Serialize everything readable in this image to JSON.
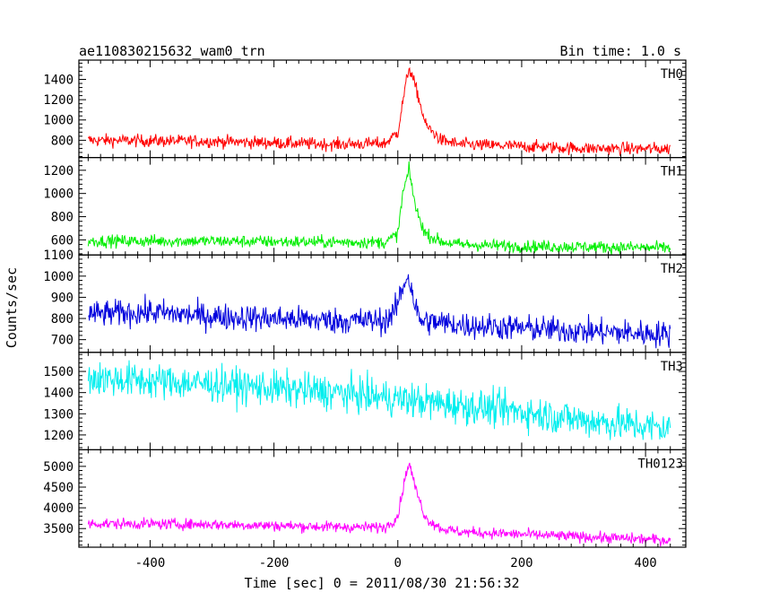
{
  "chart_data": {
    "type": "line",
    "title": "ae110830215632_wam0_trn",
    "subtitle": "Bin time: 1.0 s",
    "xlabel": "Time [sec] 0 = 2011/08/30 21:56:32",
    "ylabel": "Counts/sec",
    "xlim": [
      -515,
      465
    ],
    "xticks": [
      -400,
      -200,
      0,
      200,
      400
    ],
    "grid": false,
    "panels": [
      {
        "name": "TH0",
        "color": "#ff0000",
        "ylim": [
          630,
          1590
        ],
        "yticks": [
          800,
          1000,
          1200,
          1400
        ],
        "series": [
          {
            "x": -500,
            "y": 800
          },
          {
            "x": -300,
            "y": 790
          },
          {
            "x": -100,
            "y": 760
          },
          {
            "x": -20,
            "y": 770
          },
          {
            "x": 0,
            "y": 880
          },
          {
            "x": 10,
            "y": 1250
          },
          {
            "x": 18,
            "y": 1520
          },
          {
            "x": 30,
            "y": 1300
          },
          {
            "x": 45,
            "y": 950
          },
          {
            "x": 70,
            "y": 800
          },
          {
            "x": 100,
            "y": 760
          },
          {
            "x": 200,
            "y": 740
          },
          {
            "x": 300,
            "y": 720
          },
          {
            "x": 440,
            "y": 715
          }
        ]
      },
      {
        "name": "TH1",
        "color": "#00ee00",
        "ylim": [
          470,
          1310
        ],
        "yticks": [
          600,
          800,
          1000,
          1200
        ],
        "series": [
          {
            "x": -500,
            "y": 590
          },
          {
            "x": -300,
            "y": 590
          },
          {
            "x": -100,
            "y": 580
          },
          {
            "x": -20,
            "y": 580
          },
          {
            "x": 0,
            "y": 650
          },
          {
            "x": 8,
            "y": 1000
          },
          {
            "x": 18,
            "y": 1200
          },
          {
            "x": 30,
            "y": 850
          },
          {
            "x": 45,
            "y": 650
          },
          {
            "x": 70,
            "y": 585
          },
          {
            "x": 100,
            "y": 560
          },
          {
            "x": 200,
            "y": 545
          },
          {
            "x": 300,
            "y": 540
          },
          {
            "x": 440,
            "y": 530
          }
        ]
      },
      {
        "name": "TH2",
        "color": "#0000dd",
        "ylim": [
          640,
          1100
        ],
        "yticks": [
          700,
          800,
          900,
          1000,
          1100
        ],
        "series": [
          {
            "x": -500,
            "y": 820
          },
          {
            "x": -400,
            "y": 830
          },
          {
            "x": -300,
            "y": 810
          },
          {
            "x": -100,
            "y": 790
          },
          {
            "x": -20,
            "y": 790
          },
          {
            "x": -5,
            "y": 830
          },
          {
            "x": 5,
            "y": 920
          },
          {
            "x": 16,
            "y": 1010
          },
          {
            "x": 25,
            "y": 900
          },
          {
            "x": 35,
            "y": 790
          },
          {
            "x": 100,
            "y": 770
          },
          {
            "x": 200,
            "y": 755
          },
          {
            "x": 300,
            "y": 740
          },
          {
            "x": 440,
            "y": 725
          }
        ]
      },
      {
        "name": "TH3",
        "color": "#00eeee",
        "ylim": [
          1130,
          1590
        ],
        "yticks": [
          1200,
          1300,
          1400,
          1500
        ],
        "series": [
          {
            "x": -500,
            "y": 1470
          },
          {
            "x": -300,
            "y": 1440
          },
          {
            "x": -100,
            "y": 1400
          },
          {
            "x": 0,
            "y": 1370
          },
          {
            "x": 100,
            "y": 1340
          },
          {
            "x": 200,
            "y": 1310
          },
          {
            "x": 300,
            "y": 1270
          },
          {
            "x": 440,
            "y": 1230
          }
        ]
      },
      {
        "name": "TH0123",
        "color": "#ff00ff",
        "ylim": [
          3050,
          5400
        ],
        "yticks": [
          3500,
          4000,
          4500,
          5000
        ],
        "series": [
          {
            "x": -500,
            "y": 3620
          },
          {
            "x": -300,
            "y": 3600
          },
          {
            "x": -100,
            "y": 3540
          },
          {
            "x": -20,
            "y": 3530
          },
          {
            "x": 0,
            "y": 3800
          },
          {
            "x": 10,
            "y": 4600
          },
          {
            "x": 18,
            "y": 5100
          },
          {
            "x": 30,
            "y": 4400
          },
          {
            "x": 45,
            "y": 3750
          },
          {
            "x": 70,
            "y": 3500
          },
          {
            "x": 100,
            "y": 3420
          },
          {
            "x": 200,
            "y": 3360
          },
          {
            "x": 300,
            "y": 3300
          },
          {
            "x": 440,
            "y": 3220
          }
        ]
      }
    ]
  }
}
